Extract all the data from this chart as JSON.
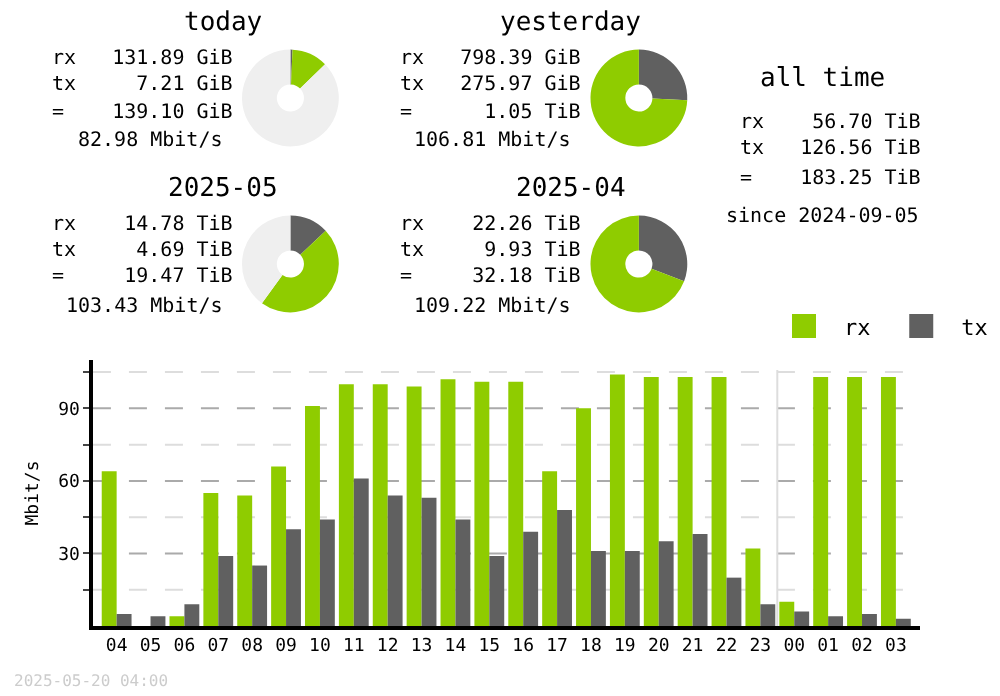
{
  "chart_data": [
    {
      "type": "donut",
      "title": "today",
      "categories": [
        null,
        null,
        null
      ],
      "values": [
        0.7,
        12,
        87.3
      ],
      "colors": [
        "#606060",
        "#8fcc00",
        "#efefef"
      ],
      "annotations": [
        "rx 131.89 GiB",
        "tx 7.21 GiB",
        "= 139.10 GiB",
        "82.98 Mbit/s"
      ]
    },
    {
      "type": "donut",
      "title": "yesterday",
      "categories": [
        null,
        null
      ],
      "values": [
        25.7,
        74.3
      ],
      "colors": [
        "#606060",
        "#8fcc00"
      ],
      "annotations": [
        "rx 798.39 GiB",
        "tx 275.97 GiB",
        "= 1.05 TiB",
        "106.81 Mbit/s"
      ]
    },
    {
      "type": "donut",
      "title": "2025-05",
      "categories": [
        null,
        null,
        null
      ],
      "values": [
        13,
        47,
        40
      ],
      "colors": [
        "#606060",
        "#8fcc00",
        "#efefef"
      ],
      "annotations": [
        "rx 14.78 TiB",
        "tx 4.69 TiB",
        "= 19.47 TiB",
        "103.43 Mbit/s"
      ]
    },
    {
      "type": "donut",
      "title": "2025-04",
      "categories": [
        null,
        null
      ],
      "values": [
        30.8,
        69.2
      ],
      "colors": [
        "#606060",
        "#8fcc00"
      ],
      "annotations": [
        "rx 22.26 TiB",
        "tx 9.93 TiB",
        "= 32.18 TiB",
        "109.22 Mbit/s"
      ]
    },
    {
      "type": "other",
      "title": "all time",
      "annotations": [
        "rx 56.70 TiB",
        "tx 126.56 TiB",
        "= 183.25 TiB",
        "since 2024-09-05"
      ]
    },
    {
      "type": "bar",
      "ylabel": "Mbit/s",
      "categories": [
        "04",
        "05",
        "06",
        "07",
        "08",
        "09",
        "10",
        "11",
        "12",
        "13",
        "14",
        "15",
        "16",
        "17",
        "18",
        "19",
        "20",
        "21",
        "22",
        "23",
        "00",
        "01",
        "02",
        "03"
      ],
      "series": [
        {
          "name": "rx",
          "color": "#8fcc00",
          "values": [
            64,
            0,
            4,
            55,
            54,
            66,
            91,
            100,
            100,
            99,
            102,
            101,
            101,
            64,
            90,
            104,
            103,
            103,
            103,
            32,
            10,
            103,
            103,
            103
          ]
        },
        {
          "name": "tx",
          "color": "#606060",
          "values": [
            5,
            4,
            9,
            29,
            25,
            40,
            44,
            61,
            54,
            53,
            44,
            29,
            39,
            48,
            31,
            31,
            35,
            38,
            20,
            9,
            6,
            4,
            5,
            3
          ]
        }
      ],
      "ylim": [
        0,
        110
      ],
      "yticks": [
        {
          "value": 15,
          "label": null
        },
        30,
        {
          "value": 45,
          "label": null
        },
        60,
        {
          "value": 75,
          "label": null
        },
        90,
        {
          "value": 105,
          "label": null
        }
      ],
      "grid": "y",
      "legend": "top right",
      "ref_lines": [
        {
          "axis": "x",
          "value": "00",
          "color": "#dddddd"
        }
      ],
      "annotations": [
        "2025-05-20 04:00"
      ]
    }
  ]
}
